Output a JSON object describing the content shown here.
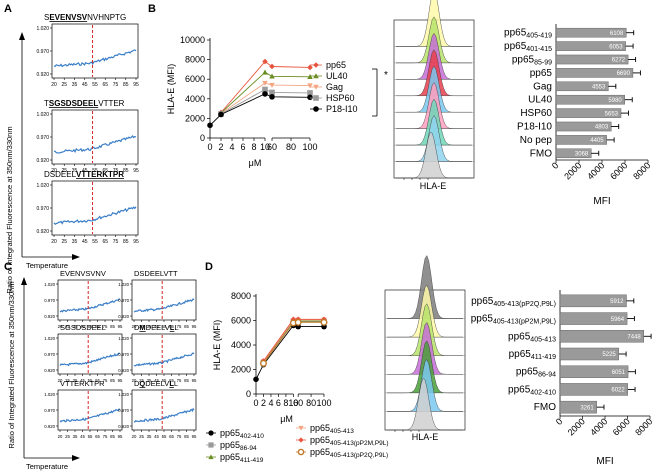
{
  "panels": {
    "A": {
      "letter": "A",
      "y_axis_label": "Ratio of Integrated Fluorescence at 350nm/330nm",
      "x_axis_label": "Temperature",
      "plots": [
        {
          "title_plain_pre": "S",
          "title_underlined": "EVENVSV",
          "title_plain_post": "NVHNPTG",
          "y_ticks": [
            "1.020",
            "0.970",
            "0.920"
          ],
          "x_ticks": [
            "20",
            "25",
            "35",
            "45",
            "55",
            "65",
            "75",
            "85",
            "95"
          ]
        },
        {
          "title_plain_pre": "T",
          "title_underlined": "SGSDSDEEL",
          "title_plain_post": "VTTER",
          "y_ticks": [
            "1.020",
            "0.970",
            "0.920"
          ],
          "x_ticks": [
            "20",
            "25",
            "35",
            "45",
            "55",
            "65",
            "75",
            "85",
            "95"
          ]
        },
        {
          "title_plain_pre": "DSDEEL",
          "title_underlined": "VTTERKTPR",
          "title_plain_post": "",
          "y_ticks": [
            "1.020",
            "0.970",
            "0.920"
          ],
          "x_ticks": [
            "20",
            "25",
            "35",
            "45",
            "55",
            "65",
            "75",
            "85",
            "95"
          ]
        }
      ]
    },
    "B": {
      "letter": "B",
      "significance": "*",
      "flow_xlabel": "HLA-E",
      "mfi_xlabel": "MFI",
      "mfi_x_ticks": [
        "0",
        "2000",
        "4000",
        "6000",
        "8000"
      ]
    },
    "C": {
      "letter": "C",
      "y_axis_label": "Ratio of Integrated Fluorescence at 350nm/330nm",
      "x_axis_label": "Temperature",
      "y_ticks": [
        "1.020",
        "0.970",
        "0.920"
      ],
      "x_ticks": [
        "20",
        "25",
        "35",
        "45",
        "55",
        "65",
        "75",
        "85",
        "95"
      ],
      "plots": [
        {
          "title": "EVENVSVNV"
        },
        {
          "title": "DSDEELVTT"
        },
        {
          "title": "SGSDSDEEL"
        },
        {
          "title_pre": "D",
          "title_u1": "M",
          "title_mid": "DEELV",
          "title_u2": "L",
          "title_post": "L"
        },
        {
          "title": "VTTERKTPR"
        },
        {
          "title_pre": "D",
          "title_u1": "Q",
          "title_mid": "DEELV",
          "title_u2": "L",
          "title_post": "L"
        }
      ]
    },
    "D": {
      "letter": "D",
      "flow_xlabel": "HLA-E",
      "mfi_xlabel": "MFI",
      "mfi_x_ticks": [
        "0",
        "2000",
        "4000",
        "6000",
        "8000"
      ],
      "legend": [
        {
          "base": "pp65",
          "sub": "402-410",
          "color": "#000000",
          "marker": "circle"
        },
        {
          "base": "pp65",
          "sub": "86-94",
          "color": "#9a9a9a",
          "marker": "square"
        },
        {
          "base": "pp65",
          "sub": "411-419",
          "color": "#6b8e23",
          "marker": "triangle"
        },
        {
          "base": "pp65",
          "sub": "405-413",
          "color": "#f4a582",
          "marker": "triangle-down"
        },
        {
          "base": "pp65",
          "sub": "405-413(pP2M,P9L)",
          "color": "#e8553f",
          "marker": "diamond"
        },
        {
          "base": "pp65",
          "sub": "405-413(pP2Q,P9L)",
          "color": "#c07a2a",
          "marker": "circle-open"
        }
      ]
    }
  },
  "chart_data": [
    {
      "id": "B-dose",
      "type": "line",
      "title": "",
      "xlabel": "μM",
      "ylabel": "HLA-E (MFI)",
      "x_tick_labels": [
        "0",
        "2",
        "4",
        "6",
        "8",
        "10",
        "60",
        "80",
        "100"
      ],
      "y_ticks": [
        0,
        2000,
        4000,
        6000,
        8000,
        10000
      ],
      "ylim": [
        0,
        10000
      ],
      "x": [
        0,
        2,
        10,
        60,
        100
      ],
      "series": [
        {
          "name": "pp65",
          "color": "#e8553f",
          "marker": "diamond",
          "values": [
            null,
            2600,
            7800,
            7300,
            7200
          ]
        },
        {
          "name": "UL40",
          "color": "#6b8e23",
          "marker": "triangle",
          "values": [
            null,
            2550,
            6700,
            6300,
            6250
          ]
        },
        {
          "name": "Gag",
          "color": "#f4a582",
          "marker": "triangle-down",
          "values": [
            null,
            2500,
            5600,
            5400,
            5350
          ]
        },
        {
          "name": "HSP60",
          "color": "#9a9a9a",
          "marker": "square",
          "values": [
            null,
            2450,
            4950,
            4650,
            4600
          ]
        },
        {
          "name": "P18-I10",
          "color": "#000000",
          "marker": "circle",
          "values": [
            1300,
            2400,
            4500,
            4200,
            4150
          ]
        }
      ]
    },
    {
      "id": "B-mfi",
      "type": "bar",
      "orientation": "horizontal",
      "xlabel": "MFI",
      "xlim": [
        0,
        8000
      ],
      "categories": [
        {
          "base": "pp65",
          "sub": "405-419"
        },
        {
          "base": "pp65",
          "sub": "401-415"
        },
        {
          "base": "pp65",
          "sub": "85-99"
        },
        {
          "base": "pp65",
          "sub": ""
        },
        {
          "base": "Gag",
          "sub": ""
        },
        {
          "base": "UL40",
          "sub": ""
        },
        {
          "base": "HSP60",
          "sub": ""
        },
        {
          "base": "P18-I10",
          "sub": ""
        },
        {
          "base": "No pep",
          "sub": ""
        },
        {
          "base": "FMO",
          "sub": ""
        }
      ],
      "values": [
        6108,
        6053,
        6272,
        6690,
        4553,
        5980,
        5653,
        4803,
        4405,
        3068
      ],
      "value_labels": [
        "6108",
        "6053",
        "6272",
        "6690",
        "4553",
        "5980",
        "5653",
        "4803",
        "4405",
        "3068"
      ]
    },
    {
      "id": "D-dose",
      "type": "line",
      "xlabel": "μM",
      "ylabel": "HLA-E (MFI)",
      "x_tick_labels": [
        "0",
        "2",
        "4",
        "6",
        "8",
        "10",
        "60",
        "80",
        "100"
      ],
      "y_ticks": [
        0,
        2000,
        4000,
        6000,
        8000
      ],
      "ylim": [
        0,
        8000
      ],
      "x": [
        0,
        2,
        10,
        60,
        100
      ],
      "series": [
        {
          "name": "pp65 402-410",
          "color": "#000000",
          "marker": "circle",
          "values": [
            1200,
            2400,
            5600,
            5500,
            5500
          ]
        },
        {
          "name": "pp65 86-94",
          "color": "#9a9a9a",
          "marker": "square",
          "values": [
            null,
            2550,
            5900,
            5900,
            5900
          ]
        },
        {
          "name": "pp65 411-419",
          "color": "#6b8e23",
          "marker": "triangle",
          "values": [
            null,
            2600,
            5950,
            5950,
            5950
          ]
        },
        {
          "name": "pp65 405-413",
          "color": "#f4a582",
          "marker": "triangle-down",
          "values": [
            null,
            2650,
            6000,
            6050,
            6050
          ]
        },
        {
          "name": "pp65 405-413(pP2M,P9L)",
          "color": "#e8553f",
          "marker": "diamond",
          "values": [
            null,
            2700,
            6100,
            6100,
            6100
          ]
        },
        {
          "name": "pp65 405-413(pP2Q,P9L)",
          "color": "#c07a2a",
          "marker": "circle-open",
          "values": [
            null,
            2500,
            5800,
            5850,
            5850
          ]
        }
      ]
    },
    {
      "id": "D-mfi",
      "type": "bar",
      "orientation": "horizontal",
      "xlabel": "MFI",
      "xlim": [
        0,
        8000
      ],
      "categories": [
        {
          "base": "pp65",
          "sub": "405-413(pP2Q,P9L)"
        },
        {
          "base": "pp65",
          "sub": "405-413(pP2M,P9L)"
        },
        {
          "base": "pp65",
          "sub": "405-413"
        },
        {
          "base": "pp65",
          "sub": "411-419"
        },
        {
          "base": "pp65",
          "sub": "86-94"
        },
        {
          "base": "pp65",
          "sub": "402-410"
        },
        {
          "base": "FMO",
          "sub": ""
        }
      ],
      "values": [
        5912,
        5964,
        7448,
        5225,
        6051,
        6022,
        3261
      ],
      "value_labels": [
        "5912",
        "5964",
        "7448",
        "5225",
        "6051",
        "6022",
        "3261"
      ]
    }
  ]
}
